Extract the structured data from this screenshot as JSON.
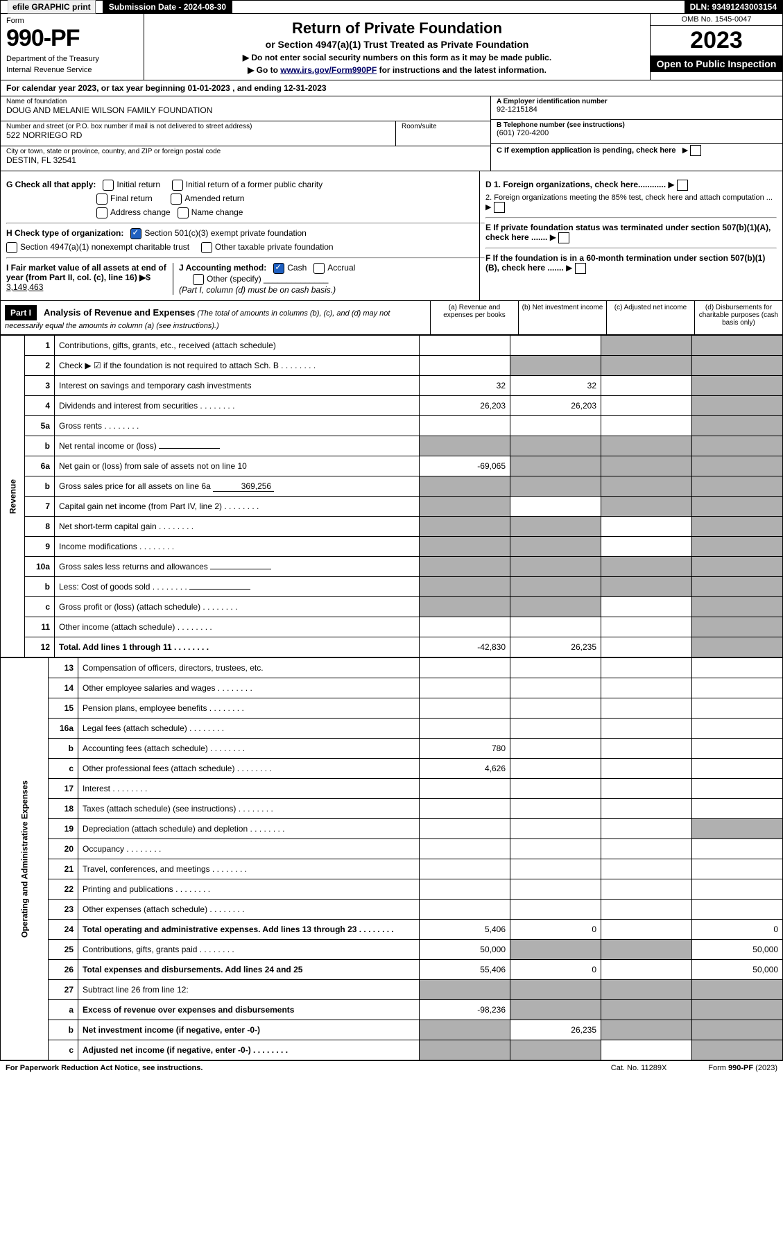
{
  "topbar": {
    "efile": "efile GRAPHIC print",
    "submission": "Submission Date - 2024-08-30",
    "dln": "DLN: 93491243003154"
  },
  "header": {
    "form_label": "Form",
    "form_number": "990-PF",
    "dept": "Department of the Treasury",
    "irs": "Internal Revenue Service",
    "title": "Return of Private Foundation",
    "subtitle": "or Section 4947(a)(1) Trust Treated as Private Foundation",
    "note1": "▶ Do not enter social security numbers on this form as it may be made public.",
    "note2_pre": "▶ Go to ",
    "note2_link": "www.irs.gov/Form990PF",
    "note2_post": " for instructions and the latest information.",
    "omb": "OMB No. 1545-0047",
    "year": "2023",
    "open": "Open to Public Inspection"
  },
  "calyear": "For calendar year 2023, or tax year beginning 01-01-2023            , and ending 12-31-2023",
  "info": {
    "name_label": "Name of foundation",
    "name": "DOUG AND MELANIE WILSON FAMILY FOUNDATION",
    "ein_label": "A Employer identification number",
    "ein": "92-1215184",
    "addr_label": "Number and street (or P.O. box number if mail is not delivered to street address)",
    "addr": "522 NORRIEGO RD",
    "room_label": "Room/suite",
    "phone_label": "B Telephone number (see instructions)",
    "phone": "(601) 720-4200",
    "city_label": "City or town, state or province, country, and ZIP or foreign postal code",
    "city": "DESTIN, FL  32541",
    "pending": "C If exemption application is pending, check here"
  },
  "checks": {
    "g": "G Check all that apply:",
    "g1": "Initial return",
    "g2": "Initial return of a former public charity",
    "g3": "Final return",
    "g4": "Amended return",
    "g5": "Address change",
    "g6": "Name change",
    "h": "H Check type of organization:",
    "h1": "Section 501(c)(3) exempt private foundation",
    "h2": "Section 4947(a)(1) nonexempt charitable trust",
    "h3": "Other taxable private foundation",
    "i": "I Fair market value of all assets at end of year (from Part II, col. (c), line 16) ▶$ ",
    "i_val": "3,149,463",
    "j": "J Accounting method:",
    "j1": "Cash",
    "j2": "Accrual",
    "j3": "Other (specify)",
    "j_note": "(Part I, column (d) must be on cash basis.)",
    "d1": "D 1. Foreign organizations, check here............",
    "d2": "   2. Foreign organizations meeting the 85% test, check here and attach computation ...",
    "e": "E  If private foundation status was terminated under section 507(b)(1)(A), check here .......",
    "f": "F  If the foundation is in a 60-month termination under section 507(b)(1)(B), check here .......",
    "arrow": "▶"
  },
  "part1": {
    "label": "Part I",
    "title": "Analysis of Revenue and Expenses",
    "title_note": " (The total of amounts in columns (b), (c), and (d) may not necessarily equal the amounts in column (a) (see instructions).)",
    "cols": {
      "a": "(a)   Revenue and expenses per books",
      "b": "(b)   Net investment income",
      "c": "(c)   Adjusted net income",
      "d": "(d)   Disbursements for charitable purposes (cash basis only)"
    }
  },
  "revenue_label": "Revenue",
  "expenses_label": "Operating and Administrative Expenses",
  "rows": [
    {
      "n": "1",
      "desc": "Contributions, gifts, grants, etc., received (attach schedule)",
      "a": "",
      "b": "",
      "c_s": true,
      "d_s": true
    },
    {
      "n": "2",
      "desc": "Check ▶ ☑ if the foundation is not required to attach Sch. B",
      "dots": true,
      "a": "",
      "b_s": true,
      "c_s": true,
      "d_s": true
    },
    {
      "n": "3",
      "desc": "Interest on savings and temporary cash investments",
      "a": "32",
      "b": "32",
      "c": "",
      "d_s": true
    },
    {
      "n": "4",
      "desc": "Dividends and interest from securities",
      "dots": true,
      "a": "26,203",
      "b": "26,203",
      "c": "",
      "d_s": true
    },
    {
      "n": "5a",
      "desc": "Gross rents",
      "dots": true,
      "a": "",
      "b": "",
      "c": "",
      "d_s": true
    },
    {
      "n": "b",
      "desc": "Net rental income or (loss)",
      "inline": "",
      "a_s": true,
      "b_s": true,
      "c_s": true,
      "d_s": true
    },
    {
      "n": "6a",
      "desc": "Net gain or (loss) from sale of assets not on line 10",
      "a": "-69,065",
      "b_s": true,
      "c_s": true,
      "d_s": true
    },
    {
      "n": "b",
      "desc": "Gross sales price for all assets on line 6a",
      "inline": "369,256",
      "a_s": true,
      "b_s": true,
      "c_s": true,
      "d_s": true
    },
    {
      "n": "7",
      "desc": "Capital gain net income (from Part IV, line 2)",
      "dots": true,
      "a_s": true,
      "b": "",
      "c_s": true,
      "d_s": true
    },
    {
      "n": "8",
      "desc": "Net short-term capital gain",
      "dots": true,
      "a_s": true,
      "b_s": true,
      "c": "",
      "d_s": true
    },
    {
      "n": "9",
      "desc": "Income modifications",
      "dots": true,
      "a_s": true,
      "b_s": true,
      "c": "",
      "d_s": true
    },
    {
      "n": "10a",
      "desc": "Gross sales less returns and allowances",
      "inline": "",
      "a_s": true,
      "b_s": true,
      "c_s": true,
      "d_s": true
    },
    {
      "n": "b",
      "desc": "Less: Cost of goods sold",
      "dots": true,
      "inline": "",
      "a_s": true,
      "b_s": true,
      "c_s": true,
      "d_s": true
    },
    {
      "n": "c",
      "desc": "Gross profit or (loss) (attach schedule)",
      "dots": true,
      "a_s": true,
      "b_s": true,
      "c": "",
      "d_s": true
    },
    {
      "n": "11",
      "desc": "Other income (attach schedule)",
      "dots": true,
      "a": "",
      "b": "",
      "c": "",
      "d_s": true
    },
    {
      "n": "12",
      "desc": "Total. Add lines 1 through 11",
      "dots": true,
      "bold": true,
      "a": "-42,830",
      "b": "26,235",
      "c": "",
      "d_s": true
    }
  ],
  "exp_rows": [
    {
      "n": "13",
      "desc": "Compensation of officers, directors, trustees, etc.",
      "a": "",
      "b": "",
      "c": "",
      "d": ""
    },
    {
      "n": "14",
      "desc": "Other employee salaries and wages",
      "dots": true,
      "a": "",
      "b": "",
      "c": "",
      "d": ""
    },
    {
      "n": "15",
      "desc": "Pension plans, employee benefits",
      "dots": true,
      "a": "",
      "b": "",
      "c": "",
      "d": ""
    },
    {
      "n": "16a",
      "desc": "Legal fees (attach schedule)",
      "dots": true,
      "a": "",
      "b": "",
      "c": "",
      "d": ""
    },
    {
      "n": "b",
      "desc": "Accounting fees (attach schedule)",
      "dots": true,
      "a": "780",
      "b": "",
      "c": "",
      "d": ""
    },
    {
      "n": "c",
      "desc": "Other professional fees (attach schedule)",
      "dots": true,
      "a": "4,626",
      "b": "",
      "c": "",
      "d": ""
    },
    {
      "n": "17",
      "desc": "Interest",
      "dots": true,
      "a": "",
      "b": "",
      "c": "",
      "d": ""
    },
    {
      "n": "18",
      "desc": "Taxes (attach schedule) (see instructions)",
      "dots": true,
      "a": "",
      "b": "",
      "c": "",
      "d": ""
    },
    {
      "n": "19",
      "desc": "Depreciation (attach schedule) and depletion",
      "dots": true,
      "a": "",
      "b": "",
      "c": "",
      "d_s": true
    },
    {
      "n": "20",
      "desc": "Occupancy",
      "dots": true,
      "a": "",
      "b": "",
      "c": "",
      "d": ""
    },
    {
      "n": "21",
      "desc": "Travel, conferences, and meetings",
      "dots": true,
      "a": "",
      "b": "",
      "c": "",
      "d": ""
    },
    {
      "n": "22",
      "desc": "Printing and publications",
      "dots": true,
      "a": "",
      "b": "",
      "c": "",
      "d": ""
    },
    {
      "n": "23",
      "desc": "Other expenses (attach schedule)",
      "dots": true,
      "a": "",
      "b": "",
      "c": "",
      "d": ""
    },
    {
      "n": "24",
      "desc": "Total operating and administrative expenses. Add lines 13 through 23",
      "dots": true,
      "bold": true,
      "a": "5,406",
      "b": "0",
      "c": "",
      "d": "0"
    },
    {
      "n": "25",
      "desc": "Contributions, gifts, grants paid",
      "dots": true,
      "a": "50,000",
      "b_s": true,
      "c_s": true,
      "d": "50,000"
    },
    {
      "n": "26",
      "desc": "Total expenses and disbursements. Add lines 24 and 25",
      "bold": true,
      "a": "55,406",
      "b": "0",
      "c": "",
      "d": "50,000"
    },
    {
      "n": "27",
      "desc": "Subtract line 26 from line 12:",
      "a_s": true,
      "b_s": true,
      "c_s": true,
      "d_s": true
    },
    {
      "n": "a",
      "desc": "Excess of revenue over expenses and disbursements",
      "bold": true,
      "a": "-98,236",
      "b_s": true,
      "c_s": true,
      "d_s": true
    },
    {
      "n": "b",
      "desc": "Net investment income (if negative, enter -0-)",
      "bold": true,
      "a_s": true,
      "b": "26,235",
      "c_s": true,
      "d_s": true
    },
    {
      "n": "c",
      "desc": "Adjusted net income (if negative, enter -0-)",
      "dots": true,
      "bold": true,
      "a_s": true,
      "b_s": true,
      "c": "",
      "d_s": true
    }
  ],
  "footer": {
    "left": "For Paperwork Reduction Act Notice, see instructions.",
    "mid": "Cat. No. 11289X",
    "right": "Form 990-PF (2023)"
  }
}
